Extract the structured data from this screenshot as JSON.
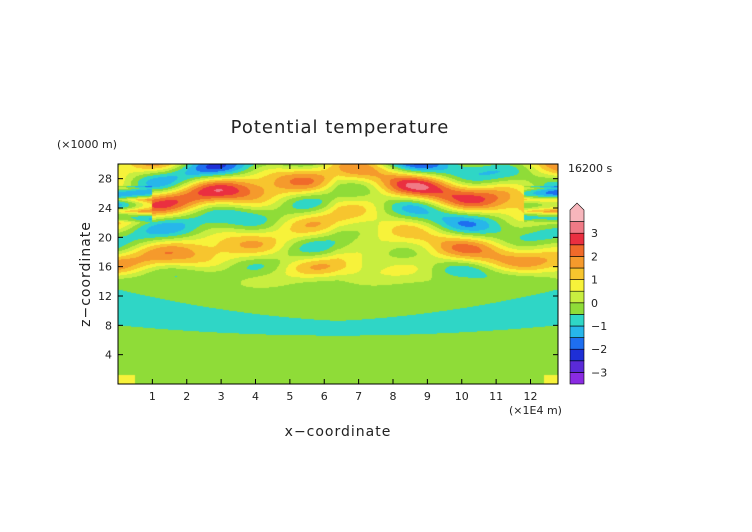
{
  "chart_data": {
    "type": "heatmap",
    "title": "Potential temperature",
    "xlabel": "x−coordinate",
    "ylabel": "z−coordinate",
    "x_unit": "(×1E4 m)",
    "y_unit": "(×1000 m)",
    "time_label": "16200 s",
    "xlim": [
      0,
      12.8
    ],
    "ylim": [
      0,
      30
    ],
    "x_ticks": [
      1,
      2,
      3,
      4,
      5,
      6,
      7,
      8,
      9,
      10,
      11,
      12
    ],
    "y_ticks": [
      4,
      8,
      12,
      16,
      20,
      24,
      28
    ],
    "colorbar": {
      "ticks": [
        "3",
        "2",
        "1",
        "0",
        "−1",
        "−2",
        "−3"
      ],
      "tick_values": [
        3,
        2,
        1,
        0,
        -1,
        -2,
        -3
      ],
      "levels": [
        {
          "from": -3.5,
          "to": -3.0,
          "color": "#8a2be2"
        },
        {
          "from": -3.0,
          "to": -2.5,
          "color": "#5a2ad8"
        },
        {
          "from": -2.5,
          "to": -2.0,
          "color": "#1e2fd6"
        },
        {
          "from": -2.0,
          "to": -1.5,
          "color": "#1e6ef0"
        },
        {
          "from": -1.5,
          "to": -1.0,
          "color": "#27b6ea"
        },
        {
          "from": -1.0,
          "to": -0.5,
          "color": "#2fd6c6"
        },
        {
          "from": -0.5,
          "to": 0.0,
          "color": "#8fdc38"
        },
        {
          "from": 0.0,
          "to": 0.5,
          "color": "#c8ee40"
        },
        {
          "from": 0.5,
          "to": 1.0,
          "color": "#f7f23a"
        },
        {
          "from": 1.0,
          "to": 1.5,
          "color": "#f7c52e"
        },
        {
          "from": 1.5,
          "to": 2.0,
          "color": "#f59a2c"
        },
        {
          "from": 2.0,
          "to": 2.5,
          "color": "#f06a2a"
        },
        {
          "from": 2.5,
          "to": 3.0,
          "color": "#ea2f40"
        },
        {
          "from": 3.0,
          "to": 3.5,
          "color": "#f07a86"
        },
        {
          "from": 3.5,
          "to": 4.0,
          "color": "#f7b6bc"
        }
      ]
    },
    "field_description_features": {
      "background_value": -0.2,
      "layer_0_to_2km": -0.2,
      "layer_6_to_11km": -0.8,
      "wave_region_km": [
        12,
        30
      ],
      "max_anomaly": 3.0,
      "min_anomaly": -2.3
    }
  }
}
